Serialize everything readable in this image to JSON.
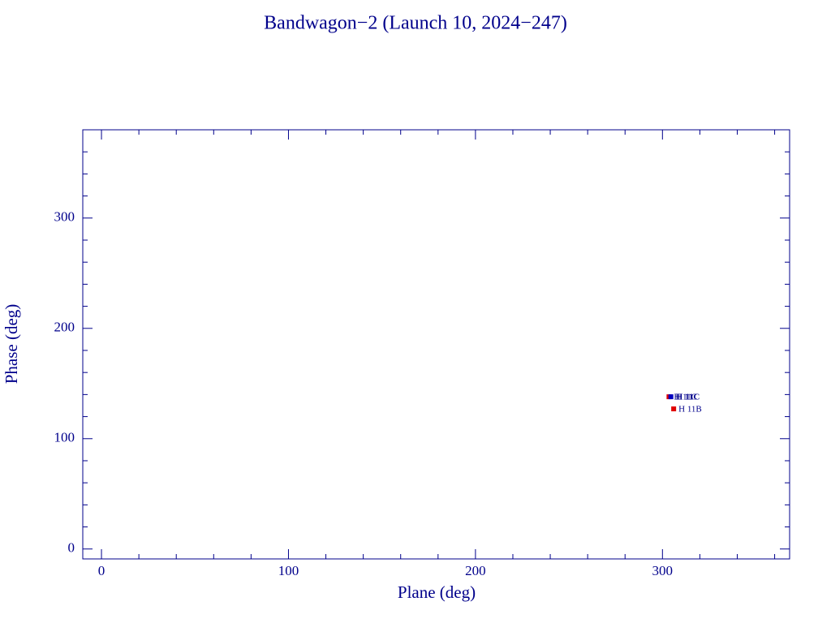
{
  "chart_data": {
    "type": "scatter",
    "title": "Bandwagon−2 (Launch 10, 2024−247)",
    "xlabel": "Plane (deg)",
    "ylabel": "Phase (deg)",
    "x": [
      303.5,
      304.5,
      306
    ],
    "y": [
      138,
      138,
      127
    ],
    "colors": [
      "#e00000",
      "#0000c0",
      "#e00000"
    ],
    "point_labels": [
      "H 11C",
      "H 11C",
      "H 11B"
    ],
    "xlim": [
      -10,
      368
    ],
    "ylim": [
      -9,
      380
    ],
    "xticks": [
      0,
      100,
      200,
      300
    ],
    "yticks": [
      0,
      100,
      200,
      300
    ],
    "xminor": [
      20,
      40,
      60,
      80,
      120,
      140,
      160,
      180,
      220,
      240,
      260,
      280,
      320,
      340,
      360
    ],
    "yminor": [
      20,
      40,
      60,
      80,
      120,
      140,
      160,
      180,
      220,
      240,
      260,
      280,
      320,
      340,
      360
    ],
    "axis_color": "#00008b"
  }
}
